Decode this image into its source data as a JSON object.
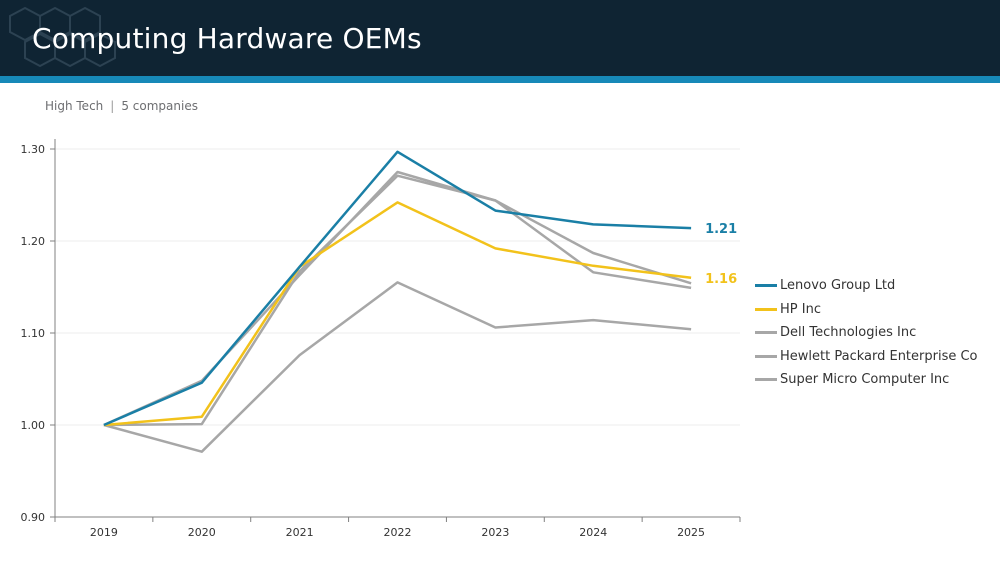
{
  "header": {
    "title": "Computing Hardware OEMs",
    "sector": "High Tech",
    "separator": "|",
    "company_count": "5 companies"
  },
  "colors": {
    "header_bg": "#0f2433",
    "accent": "#1789b8",
    "lenovo": "#1a7fa6",
    "hp": "#f2c21b",
    "peer": "#a7a7a7"
  },
  "chart_data": {
    "type": "line",
    "x": [
      "2019",
      "2020",
      "2021",
      "2022",
      "2023",
      "2024",
      "2025"
    ],
    "ylim": [
      0.9,
      1.3
    ],
    "yticks": [
      "0.90",
      "1.00",
      "1.10",
      "1.20",
      "1.30"
    ],
    "grid": true,
    "legend_position": "right",
    "series": [
      {
        "name": "Super Micro Computer Inc",
        "color": "#a7a7a7",
        "values": [
          1.0,
          0.971,
          1.076,
          1.155,
          1.106,
          1.114,
          1.104
        ]
      },
      {
        "name": "Hewlett Packard Enterprise Co",
        "color": "#a7a7a7",
        "values": [
          1.0,
          1.048,
          1.163,
          1.275,
          1.244,
          1.187,
          1.154
        ]
      },
      {
        "name": "Dell Technologies Inc",
        "color": "#a7a7a7",
        "values": [
          1.0,
          1.001,
          1.167,
          1.271,
          1.244,
          1.166,
          1.149
        ]
      },
      {
        "name": "HP Inc",
        "color": "#f2c21b",
        "values": [
          1.0,
          1.009,
          1.172,
          1.242,
          1.192,
          1.173,
          1.16
        ],
        "end_label": "1.16"
      },
      {
        "name": "Lenovo Group Ltd",
        "color": "#1a7fa6",
        "values": [
          1.0,
          1.046,
          1.172,
          1.297,
          1.233,
          1.218,
          1.214
        ],
        "end_label": "1.21"
      }
    ],
    "legend_order": [
      "Lenovo Group Ltd",
      "HP Inc",
      "Dell Technologies Inc",
      "Hewlett Packard Enterprise Co",
      "Super Micro Computer Inc"
    ]
  }
}
